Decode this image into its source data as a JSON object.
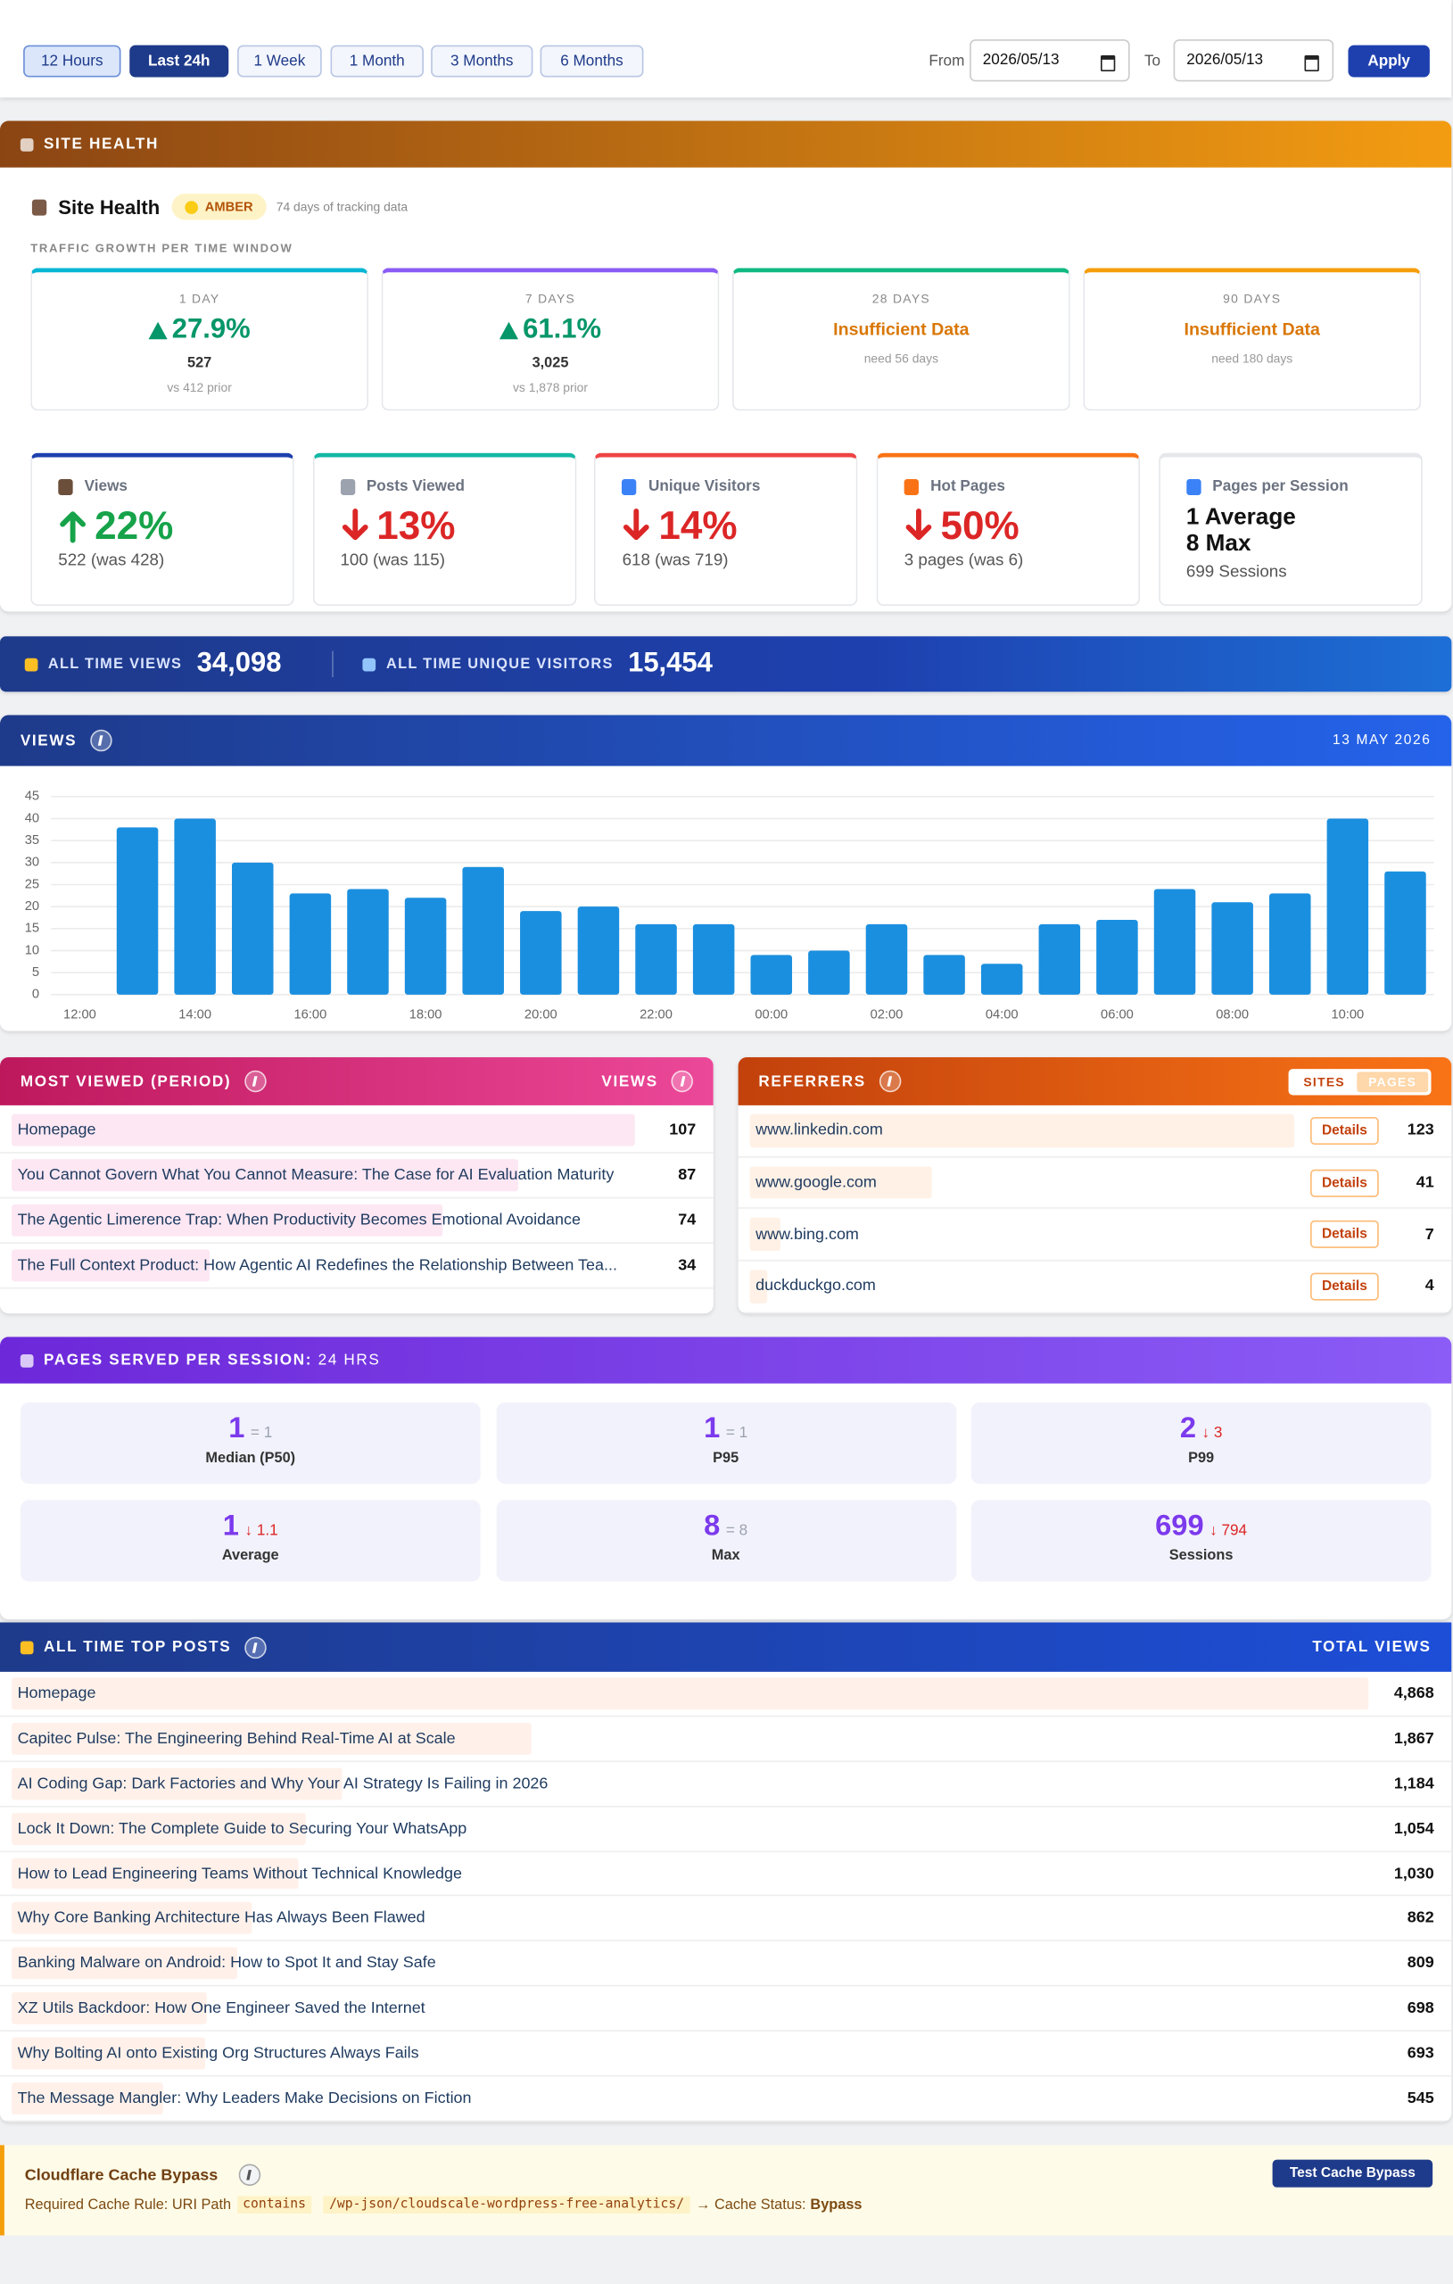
{
  "toolbar": {
    "ranges": [
      "12 Hours",
      "Last 24h",
      "1 Week",
      "1 Month",
      "3 Months",
      "6 Months"
    ],
    "from_label": "From",
    "from": "2026/05/13",
    "to_label": "To",
    "to": "2026/05/13",
    "apply": "Apply"
  },
  "site_health": {
    "header": "SITE HEALTH",
    "title": "Site Health",
    "status": "AMBER",
    "tracking": "74 days of tracking data",
    "growth_label": "TRAFFIC GROWTH PER TIME WINDOW",
    "windows": [
      {
        "label": "1 DAY",
        "value": "27.9%",
        "count": "527",
        "prior": "vs 412 prior"
      },
      {
        "label": "7 DAYS",
        "value": "61.1%",
        "count": "3,025",
        "prior": "vs 1,878 prior"
      },
      {
        "label": "28 DAYS",
        "status": "Insufficient Data",
        "note": "need 56 days"
      },
      {
        "label": "90 DAYS",
        "status": "Insufficient Data",
        "note": "need 180 days"
      }
    ],
    "metrics": [
      {
        "label": "Views",
        "trend": "up",
        "value": "22%",
        "detail": "522 (was 428)"
      },
      {
        "label": "Posts Viewed",
        "trend": "down",
        "value": "13%",
        "detail": "100 (was 115)"
      },
      {
        "label": "Unique Visitors",
        "trend": "down",
        "value": "14%",
        "detail": "618 (was 719)"
      },
      {
        "label": "Hot Pages",
        "trend": "down",
        "value": "50%",
        "detail": "3 pages (was 6)"
      }
    ],
    "pages_per_session": {
      "label": "Pages per Session",
      "average": "1 Average",
      "max": "8 Max",
      "sessions": "699 Sessions"
    }
  },
  "all_time": {
    "views_label": "ALL TIME VIEWS",
    "views": "34,098",
    "visitors_label": "ALL TIME UNIQUE VISITORS",
    "visitors": "15,454"
  },
  "chart_data": {
    "type": "bar",
    "title": "VIEWS",
    "date": "13 MAY 2026",
    "categories": [
      "12:00",
      null,
      "14:00",
      null,
      "16:00",
      null,
      "18:00",
      null,
      "20:00",
      null,
      "22:00",
      null,
      "00:00",
      null,
      "02:00",
      null,
      "04:00",
      null,
      "06:00",
      null,
      "08:00",
      null,
      "10:00",
      null
    ],
    "values": [
      0,
      38,
      40,
      30,
      23,
      24,
      22,
      29,
      19,
      20,
      16,
      16,
      9,
      10,
      16,
      9,
      7,
      16,
      17,
      24,
      21,
      23,
      40,
      28
    ],
    "color": "#1b8fdf",
    "ylim": [
      0,
      45
    ],
    "yticks": [
      0,
      5,
      10,
      15,
      20,
      25,
      30,
      35,
      40,
      45
    ],
    "grid": true
  },
  "most_viewed": {
    "title": "MOST VIEWED (PERIOD)",
    "column": "VIEWS",
    "titles": [
      "Homepage",
      "You Cannot Govern What You Cannot Measure: The Case for AI Evaluation Maturity",
      "The Agentic Limerence Trap: When Productivity Becomes Emotional Avoidance",
      "The Full Context Product: How Agentic AI Redefines the Relationship Between Tea..."
    ],
    "values": [
      107,
      87,
      74,
      34
    ]
  },
  "referrers": {
    "title": "REFERRERS",
    "tabs": [
      "SITES",
      "PAGES"
    ],
    "action": "Details",
    "sites": [
      "www.linkedin.com",
      "www.google.com",
      "www.bing.com",
      "duckduckgo.com"
    ],
    "values": [
      123,
      41,
      7,
      4
    ]
  },
  "pages_per_session": {
    "title": "PAGES SERVED PER SESSION:",
    "period": "24 HRS",
    "stats": [
      {
        "value": "1",
        "change": "= 1",
        "trend": "same",
        "label": "Median (P50)"
      },
      {
        "value": "1",
        "change": "= 1",
        "trend": "same",
        "label": "P95"
      },
      {
        "value": "2",
        "change": "↓ 3",
        "trend": "down",
        "label": "P99"
      },
      {
        "value": "1",
        "change": "↓ 1.1",
        "trend": "down",
        "label": "Average"
      },
      {
        "value": "8",
        "change": "= 8",
        "trend": "same",
        "label": "Max"
      },
      {
        "value": "699",
        "change": "↓ 794",
        "trend": "down",
        "label": "Sessions"
      }
    ]
  },
  "top_posts": {
    "title": "ALL TIME TOP POSTS",
    "column": "TOTAL VIEWS",
    "titles": [
      "Homepage",
      "Capitec Pulse: The Engineering Behind Real-Time AI at Scale",
      "AI Coding Gap: Dark Factories and Why Your AI Strategy Is Failing in 2026",
      "Lock It Down: The Complete Guide to Securing Your WhatsApp",
      "How to Lead Engineering Teams Without Technical Knowledge",
      "Why Core Banking Architecture Has Always Been Flawed",
      "Banking Malware on Android: How to Spot It and Stay Safe",
      "XZ Utils Backdoor: How One Engineer Saved the Internet",
      "Why Bolting AI onto Existing Org Structures Always Fails",
      "The Message Mangler: Why Leaders Make Decisions on Fiction"
    ],
    "values": [
      4868,
      1867,
      1184,
      1054,
      1030,
      862,
      809,
      698,
      693,
      545
    ],
    "value_labels": [
      "4,868",
      "1,867",
      "1,184",
      "1,054",
      "1,030",
      "862",
      "809",
      "698",
      "693",
      "545"
    ]
  },
  "cloudflare": {
    "title": "Cloudflare Cache Bypass",
    "button": "Test Cache Bypass",
    "rule_label": "Required Cache Rule: URI Path",
    "operator": "contains",
    "path": "/wp-json/cloudscale-wordpress-free-analytics/",
    "status_label": "→ Cache Status:",
    "status": "Bypass"
  }
}
